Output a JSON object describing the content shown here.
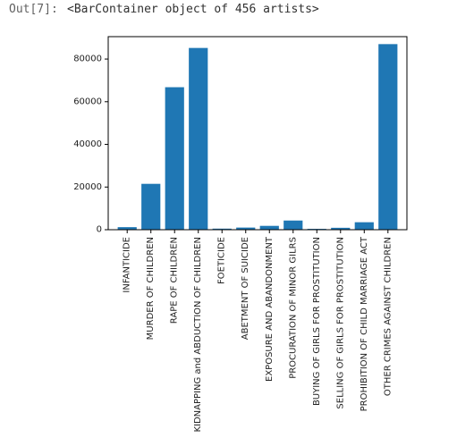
{
  "cell": {
    "prompt": "Out[7]:",
    "output": "<BarContainer object of 456 artists>"
  },
  "chart_data": {
    "type": "bar",
    "title": "",
    "xlabel": "",
    "ylabel": "",
    "bar_color": "#1f77b4",
    "ylim": [
      0,
      90500
    ],
    "yticks": [
      0,
      20000,
      40000,
      60000,
      80000
    ],
    "ytick_labels": [
      "0",
      "20000",
      "40000",
      "60000",
      "80000"
    ],
    "categories": [
      "INFANTICIDE",
      "MURDER OF CHILDREN",
      "RAPE OF CHILDREN",
      "KIDNAPPING and ABDUCTION OF CHILDREN",
      "FOETICIDE",
      "ABETMENT OF SUICIDE",
      "EXPOSURE AND ABANDONMENT",
      "PROCURATION OF MINOR GILRS",
      "BUYING OF GIRLS FOR PROSTITUTION",
      "SELLING OF GIRLS FOR PROSTITUTION",
      "PROHIBITION OF CHILD MARRIAGE ACT",
      "OTHER CRIMES AGAINST CHILDREN"
    ],
    "values": [
      1200,
      21500,
      66800,
      85200,
      500,
      1000,
      1800,
      4300,
      400,
      900,
      3500,
      87000
    ]
  }
}
